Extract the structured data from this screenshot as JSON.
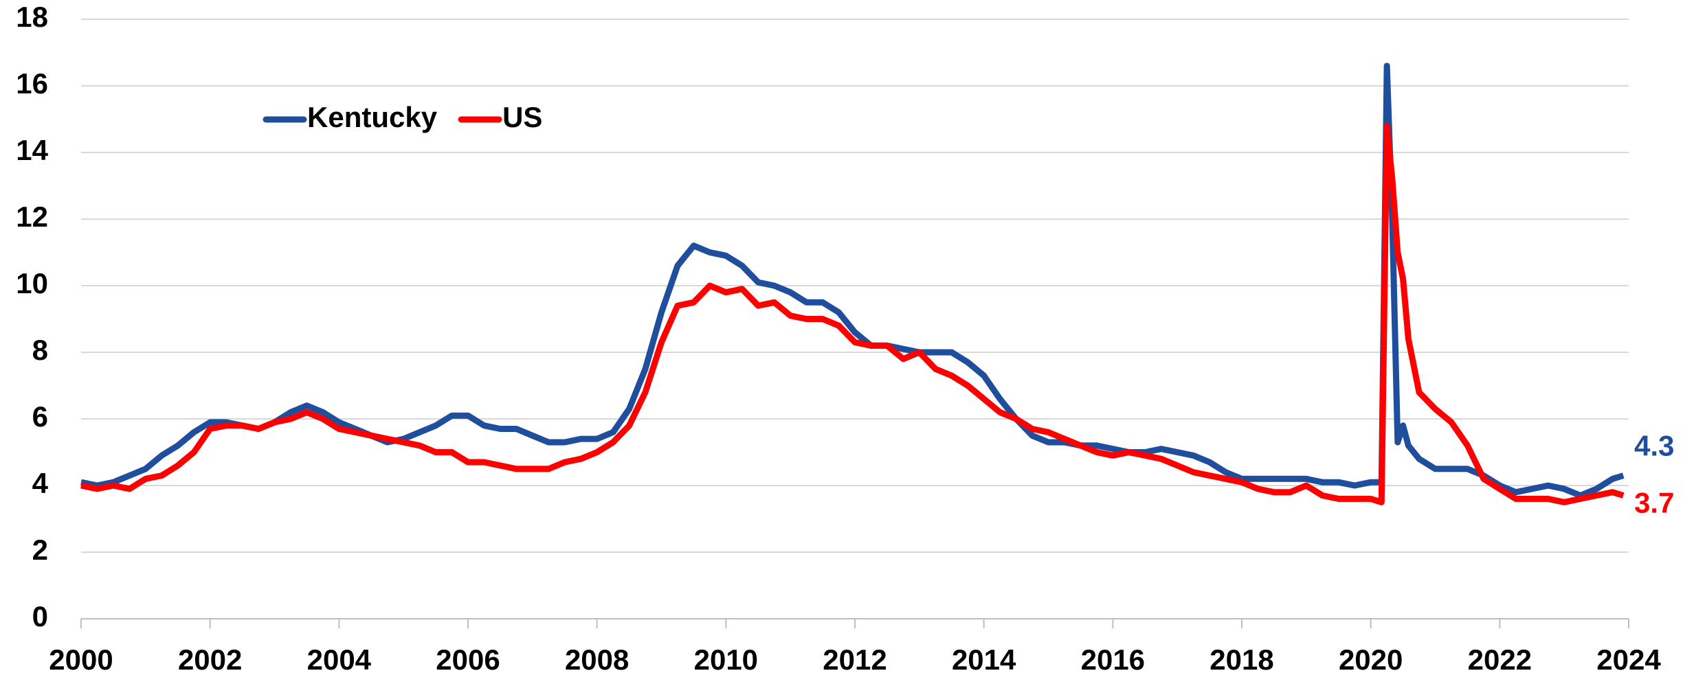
{
  "chart_data": {
    "type": "line",
    "x": [
      2000.0,
      2000.25,
      2000.5,
      2000.75,
      2001.0,
      2001.25,
      2001.5,
      2001.75,
      2002.0,
      2002.25,
      2002.5,
      2002.75,
      2003.0,
      2003.25,
      2003.5,
      2003.75,
      2004.0,
      2004.25,
      2004.5,
      2004.75,
      2005.0,
      2005.25,
      2005.5,
      2005.75,
      2006.0,
      2006.25,
      2006.5,
      2006.75,
      2007.0,
      2007.25,
      2007.5,
      2007.75,
      2008.0,
      2008.25,
      2008.5,
      2008.75,
      2009.0,
      2009.25,
      2009.5,
      2009.75,
      2010.0,
      2010.25,
      2010.5,
      2010.75,
      2011.0,
      2011.25,
      2011.5,
      2011.75,
      2012.0,
      2012.25,
      2012.5,
      2012.75,
      2013.0,
      2013.25,
      2013.5,
      2013.75,
      2014.0,
      2014.25,
      2014.5,
      2014.75,
      2015.0,
      2015.25,
      2015.5,
      2015.75,
      2016.0,
      2016.25,
      2016.5,
      2016.75,
      2017.0,
      2017.25,
      2017.5,
      2017.75,
      2018.0,
      2018.25,
      2018.5,
      2018.75,
      2019.0,
      2019.25,
      2019.5,
      2019.75,
      2020.0,
      2020.167,
      2020.25,
      2020.333,
      2020.417,
      2020.5,
      2020.583,
      2020.75,
      2021.0,
      2021.25,
      2021.5,
      2021.75,
      2022.0,
      2022.25,
      2022.5,
      2022.75,
      2023.0,
      2023.25,
      2023.5,
      2023.75,
      2023.917
    ],
    "series": [
      {
        "name": "Kentucky",
        "color": "#1f4e9c",
        "values": [
          4.1,
          4.0,
          4.1,
          4.3,
          4.5,
          4.9,
          5.2,
          5.6,
          5.9,
          5.9,
          5.8,
          5.7,
          5.9,
          6.2,
          6.4,
          6.2,
          5.9,
          5.7,
          5.5,
          5.3,
          5.4,
          5.6,
          5.8,
          6.1,
          6.1,
          5.8,
          5.7,
          5.7,
          5.5,
          5.3,
          5.3,
          5.4,
          5.4,
          5.6,
          6.3,
          7.5,
          9.2,
          10.6,
          11.2,
          11.0,
          10.9,
          10.6,
          10.1,
          10.0,
          9.8,
          9.5,
          9.5,
          9.2,
          8.6,
          8.2,
          8.2,
          8.1,
          8.0,
          8.0,
          8.0,
          7.7,
          7.3,
          6.6,
          6.0,
          5.5,
          5.3,
          5.3,
          5.2,
          5.2,
          5.1,
          5.0,
          5.0,
          5.1,
          5.0,
          4.9,
          4.7,
          4.4,
          4.2,
          4.2,
          4.2,
          4.2,
          4.2,
          4.1,
          4.1,
          4.0,
          4.1,
          4.1,
          16.6,
          12.0,
          5.3,
          5.8,
          5.2,
          4.8,
          4.5,
          4.5,
          4.5,
          4.3,
          4.0,
          3.8,
          3.9,
          4.0,
          3.9,
          3.7,
          3.9,
          4.2,
          4.3
        ]
      },
      {
        "name": "US",
        "color": "#ff0000",
        "values": [
          4.0,
          3.9,
          4.0,
          3.9,
          4.2,
          4.3,
          4.6,
          5.0,
          5.7,
          5.8,
          5.8,
          5.7,
          5.9,
          6.0,
          6.2,
          6.0,
          5.7,
          5.6,
          5.5,
          5.4,
          5.3,
          5.2,
          5.0,
          5.0,
          4.7,
          4.7,
          4.6,
          4.5,
          4.5,
          4.5,
          4.7,
          4.8,
          5.0,
          5.3,
          5.8,
          6.8,
          8.3,
          9.4,
          9.5,
          10.0,
          9.8,
          9.9,
          9.4,
          9.5,
          9.1,
          9.0,
          9.0,
          8.8,
          8.3,
          8.2,
          8.2,
          7.8,
          8.0,
          7.5,
          7.3,
          7.0,
          6.6,
          6.2,
          6.0,
          5.7,
          5.6,
          5.4,
          5.2,
          5.0,
          4.9,
          5.0,
          4.9,
          4.8,
          4.6,
          4.4,
          4.3,
          4.2,
          4.1,
          3.9,
          3.8,
          3.8,
          4.0,
          3.7,
          3.6,
          3.6,
          3.6,
          3.5,
          14.8,
          13.2,
          11.0,
          10.2,
          8.4,
          6.8,
          6.3,
          5.9,
          5.2,
          4.2,
          3.9,
          3.6,
          3.6,
          3.6,
          3.5,
          3.6,
          3.7,
          3.8,
          3.7
        ]
      }
    ],
    "xlim": [
      2000,
      2024
    ],
    "xticks": [
      2000,
      2002,
      2004,
      2006,
      2008,
      2010,
      2012,
      2014,
      2016,
      2018,
      2020,
      2022,
      2024
    ],
    "ylim": [
      0,
      18
    ],
    "yticks": [
      0,
      2,
      4,
      6,
      8,
      10,
      12,
      14,
      16,
      18
    ],
    "grid": true,
    "legend": "upper left"
  }
}
